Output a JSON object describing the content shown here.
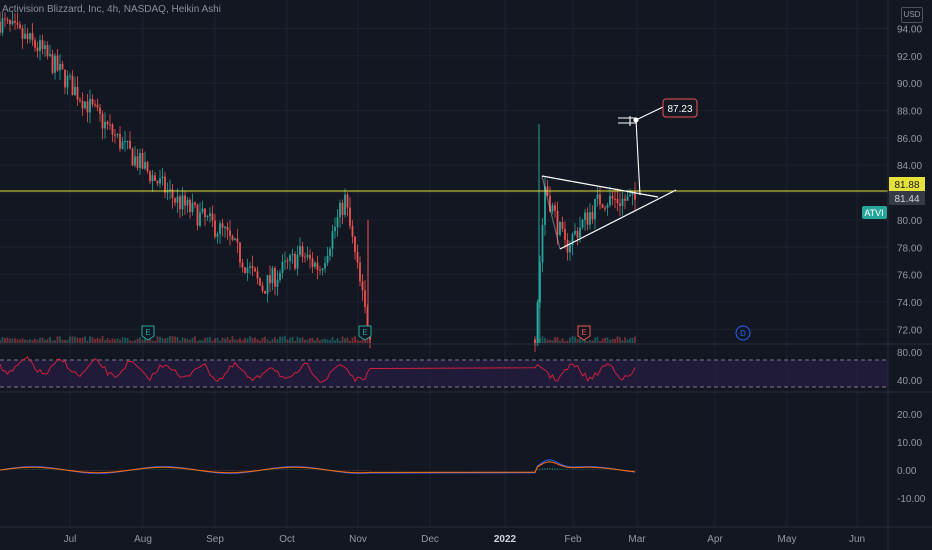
{
  "header": {
    "title": "Activision Blizzard, Inc, 4h, NASDAQ, Heikin Ashi",
    "currency": "USD"
  },
  "colors": {
    "background": "#131722",
    "up": "#26a69a",
    "down": "#ef5350",
    "level_line": "#e6e23a",
    "rsi_line": "#d11f3c",
    "rsi_band": "#2a1f4a",
    "macd_line": "#2962ff",
    "signal_line": "#ff6d00",
    "drawing": "#ffffff"
  },
  "price_axis": {
    "ticks": [
      "94.00",
      "92.00",
      "90.00",
      "88.00",
      "86.00",
      "84.00",
      "82.00",
      "80.00",
      "78.00",
      "76.00",
      "74.00",
      "72.00"
    ],
    "level_label": "81.88",
    "last_price_label": "81.44",
    "symbol_tag": "ATVI"
  },
  "rsi_axis": {
    "ticks": [
      "80.00",
      "40.00"
    ]
  },
  "macd_axis": {
    "ticks": [
      "20.00",
      "10.00",
      "0.00",
      "-10.00"
    ]
  },
  "time_axis": {
    "labels": [
      "Jul",
      "Aug",
      "Sep",
      "Oct",
      "Nov",
      "Dec",
      "2022",
      "Feb",
      "Mar",
      "Apr",
      "May",
      "Jun"
    ]
  },
  "annotations": {
    "target_label": "87.23",
    "events": [
      "E",
      "E",
      "E",
      "D"
    ]
  },
  "chart_data": {
    "type": "candlestick",
    "symbol": "ATVI",
    "exchange": "NASDAQ",
    "interval": "4h",
    "style": "Heikin Ashi",
    "ylim": [
      71,
      95.5
    ],
    "horizontal_level": 81.88,
    "last_price": 81.44,
    "target": 87.23,
    "close_path": {
      "x": [
        "Jul",
        "mid-Jul",
        "Aug",
        "mid-Aug",
        "Sep",
        "mid-Sep",
        "Oct",
        "mid-Oct",
        "Nov",
        "Nov-spike",
        "Dec",
        "2022",
        "mid-Jan",
        "Feb",
        "mid-Feb",
        "Mar"
      ],
      "y": [
        94.5,
        92.5,
        85.0,
        81.5,
        79.0,
        75.0,
        77.5,
        76.5,
        81.5,
        72.0,
        71.5,
        71.5,
        82.5,
        78.0,
        81.5,
        81.4
      ]
    },
    "rsi": {
      "levels": [
        70,
        30
      ],
      "axis_ticks": [
        80,
        40
      ]
    },
    "macd": {
      "axis_ticks": [
        20,
        10,
        0,
        -10
      ]
    }
  }
}
